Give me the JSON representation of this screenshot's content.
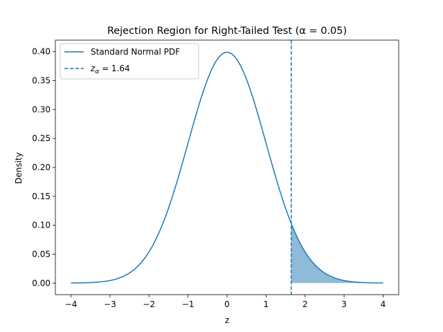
{
  "chart_data": {
    "type": "line",
    "title": "Rejection Region for Right-Tailed Test (α = 0.05)",
    "xlabel": "z",
    "ylabel": "Density",
    "xlim": [
      -4.4,
      4.4
    ],
    "ylim": [
      -0.02,
      0.42
    ],
    "xticks": [
      -4,
      -3,
      -2,
      -1,
      0,
      1,
      2,
      3,
      4
    ],
    "xtick_labels": [
      "−4",
      "−3",
      "−2",
      "−1",
      "0",
      "1",
      "2",
      "3",
      "4"
    ],
    "yticks": [
      0.0,
      0.05,
      0.1,
      0.15,
      0.2,
      0.25,
      0.3,
      0.35,
      0.4
    ],
    "ytick_labels": [
      "0.00",
      "0.05",
      "0.10",
      "0.15",
      "0.20",
      "0.25",
      "0.30",
      "0.35",
      "0.40"
    ],
    "grid": false,
    "legend_position": "top-left",
    "series": [
      {
        "name": "Standard Normal PDF",
        "kind": "line",
        "function": "standard-normal-pdf",
        "x_range": [
          -4,
          4
        ],
        "color": "#1f77b4"
      },
      {
        "name": "z_α = 1.64",
        "kind": "vertical-line",
        "style": "dashed",
        "x": 1.645,
        "color": "#1f77b4"
      }
    ],
    "shaded_region": {
      "x_from": 1.645,
      "x_to": 4,
      "color": "#1f77b4",
      "opacity": 0.5
    },
    "legend": [
      {
        "label": "Standard Normal PDF",
        "style": "solid"
      },
      {
        "label_main": "z",
        "label_sub": "α",
        "label_rest": " = 1.64",
        "style": "dashed"
      }
    ]
  }
}
